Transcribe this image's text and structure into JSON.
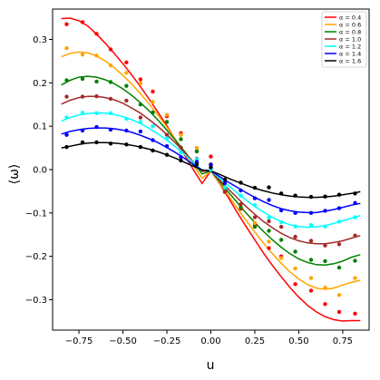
{
  "chart_data": {
    "type": "line",
    "xlabel": "u",
    "ylabel": "⟨ω⟩",
    "xlim": [
      -0.9,
      0.9
    ],
    "ylim": [
      -0.37,
      0.37
    ],
    "xticks": [
      -0.75,
      -0.5,
      -0.25,
      0.0,
      0.25,
      0.5,
      0.75
    ],
    "xtick_labels": [
      "−0.75",
      "−0.50",
      "−0.25",
      "0.00",
      "0.25",
      "0.50",
      "0.75"
    ],
    "yticks": [
      0.3,
      0.2,
      0.1,
      0.0,
      -0.1,
      -0.2,
      -0.3
    ],
    "ytick_labels": [
      "0.3",
      "0.2",
      "0.1",
      "0.0",
      "−0.1",
      "−0.2",
      "−0.3"
    ],
    "grid": false,
    "legend_position": "top-right",
    "series": [
      {
        "name": "α = 0.4",
        "color": "#ff0000",
        "curve_x": [
          -0.85,
          -0.8,
          -0.75,
          -0.7,
          -0.65,
          -0.6,
          -0.55,
          -0.5,
          -0.45,
          -0.4,
          -0.35,
          -0.3,
          -0.25,
          -0.2,
          -0.15,
          -0.1,
          -0.05,
          0.0,
          0.05,
          0.1,
          0.15,
          0.2,
          0.25,
          0.3,
          0.35,
          0.4,
          0.45,
          0.5,
          0.55,
          0.6,
          0.65,
          0.7,
          0.75,
          0.8,
          0.85
        ],
        "curve_y": [
          0.348,
          0.349,
          0.343,
          0.331,
          0.312,
          0.291,
          0.268,
          0.244,
          0.218,
          0.191,
          0.162,
          0.132,
          0.101,
          0.068,
          0.034,
          0.0,
          -0.032,
          -0.003,
          -0.032,
          -0.065,
          -0.099,
          -0.131,
          -0.162,
          -0.193,
          -0.221,
          -0.247,
          -0.272,
          -0.294,
          -0.313,
          -0.328,
          -0.339,
          -0.346,
          -0.349,
          -0.348,
          -0.348
        ],
        "points_x": [
          -0.82,
          -0.73,
          -0.65,
          -0.57,
          -0.48,
          -0.4,
          -0.33,
          -0.25,
          -0.17,
          -0.08,
          0.0,
          0.08,
          0.17,
          0.25,
          0.33,
          0.4,
          0.48,
          0.57,
          0.65,
          0.73,
          0.82
        ],
        "points_y": [
          0.335,
          0.34,
          0.313,
          0.277,
          0.247,
          0.208,
          0.18,
          0.123,
          0.084,
          0.042,
          0.03,
          -0.052,
          -0.09,
          -0.128,
          -0.181,
          -0.2,
          -0.264,
          -0.279,
          -0.31,
          -0.328,
          -0.332
        ]
      },
      {
        "name": "α = 0.6",
        "color": "#ffa500",
        "curve_x": [
          -0.85,
          -0.8,
          -0.75,
          -0.7,
          -0.65,
          -0.6,
          -0.55,
          -0.5,
          -0.45,
          -0.4,
          -0.35,
          -0.3,
          -0.25,
          -0.2,
          -0.15,
          -0.1,
          -0.05,
          0.0,
          0.05,
          0.1,
          0.15,
          0.2,
          0.25,
          0.3,
          0.35,
          0.4,
          0.45,
          0.5,
          0.55,
          0.6,
          0.65,
          0.7,
          0.75,
          0.8,
          0.85
        ],
        "curve_y": [
          0.26,
          0.268,
          0.271,
          0.269,
          0.262,
          0.25,
          0.235,
          0.217,
          0.197,
          0.175,
          0.151,
          0.125,
          0.098,
          0.069,
          0.039,
          0.01,
          -0.02,
          -0.003,
          -0.03,
          -0.06,
          -0.089,
          -0.117,
          -0.144,
          -0.17,
          -0.194,
          -0.216,
          -0.236,
          -0.252,
          -0.265,
          -0.273,
          -0.276,
          -0.273,
          -0.266,
          -0.26,
          -0.255
        ],
        "points_x": [
          -0.82,
          -0.73,
          -0.65,
          -0.57,
          -0.48,
          -0.4,
          -0.33,
          -0.25,
          -0.17,
          -0.08,
          0.0,
          0.08,
          0.17,
          0.25,
          0.33,
          0.4,
          0.48,
          0.57,
          0.65,
          0.73,
          0.82
        ],
        "points_y": [
          0.28,
          0.265,
          0.263,
          0.24,
          0.223,
          0.199,
          0.156,
          0.126,
          0.08,
          0.05,
          0.012,
          -0.052,
          -0.08,
          -0.123,
          -0.166,
          -0.204,
          -0.228,
          -0.25,
          -0.272,
          -0.289,
          -0.25
        ]
      },
      {
        "name": "α = 0.8",
        "color": "#008000",
        "curve_x": [
          -0.85,
          -0.8,
          -0.75,
          -0.7,
          -0.65,
          -0.6,
          -0.55,
          -0.5,
          -0.45,
          -0.4,
          -0.35,
          -0.3,
          -0.25,
          -0.2,
          -0.15,
          -0.1,
          -0.05,
          0.0,
          0.05,
          0.1,
          0.15,
          0.2,
          0.25,
          0.3,
          0.35,
          0.4,
          0.45,
          0.5,
          0.55,
          0.6,
          0.65,
          0.7,
          0.75,
          0.8,
          0.85
        ],
        "curve_y": [
          0.195,
          0.206,
          0.213,
          0.215,
          0.213,
          0.207,
          0.198,
          0.186,
          0.171,
          0.154,
          0.135,
          0.114,
          0.091,
          0.067,
          0.042,
          0.016,
          -0.01,
          -0.003,
          -0.027,
          -0.052,
          -0.076,
          -0.1,
          -0.122,
          -0.143,
          -0.162,
          -0.179,
          -0.194,
          -0.206,
          -0.214,
          -0.219,
          -0.22,
          -0.217,
          -0.211,
          -0.202,
          -0.196
        ],
        "points_x": [
          -0.82,
          -0.73,
          -0.65,
          -0.57,
          -0.48,
          -0.4,
          -0.33,
          -0.25,
          -0.17,
          -0.08,
          0.0,
          0.08,
          0.17,
          0.25,
          0.33,
          0.4,
          0.48,
          0.57,
          0.65,
          0.73,
          0.82
        ],
        "points_y": [
          0.206,
          0.209,
          0.203,
          0.202,
          0.193,
          0.15,
          0.132,
          0.11,
          0.07,
          0.042,
          0.012,
          -0.042,
          -0.087,
          -0.132,
          -0.141,
          -0.162,
          -0.189,
          -0.208,
          -0.211,
          -0.226,
          -0.21
        ]
      },
      {
        "name": "α = 1.0",
        "color": "#a52a2a",
        "curve_x": [
          -0.85,
          -0.8,
          -0.75,
          -0.7,
          -0.65,
          -0.6,
          -0.55,
          -0.5,
          -0.45,
          -0.4,
          -0.35,
          -0.3,
          -0.25,
          -0.2,
          -0.15,
          -0.1,
          -0.05,
          0.0,
          0.05,
          0.1,
          0.15,
          0.2,
          0.25,
          0.3,
          0.35,
          0.4,
          0.45,
          0.5,
          0.55,
          0.6,
          0.65,
          0.7,
          0.75,
          0.8,
          0.85
        ],
        "curve_y": [
          0.151,
          0.16,
          0.166,
          0.169,
          0.169,
          0.166,
          0.161,
          0.153,
          0.142,
          0.13,
          0.115,
          0.099,
          0.081,
          0.061,
          0.04,
          0.018,
          -0.004,
          -0.003,
          -0.024,
          -0.045,
          -0.065,
          -0.085,
          -0.103,
          -0.12,
          -0.134,
          -0.147,
          -0.157,
          -0.164,
          -0.169,
          -0.171,
          -0.171,
          -0.168,
          -0.164,
          -0.158,
          -0.152
        ],
        "points_x": [
          -0.82,
          -0.73,
          -0.65,
          -0.57,
          -0.48,
          -0.4,
          -0.33,
          -0.25,
          -0.17,
          -0.08,
          0.0,
          0.08,
          0.17,
          0.25,
          0.33,
          0.4,
          0.48,
          0.57,
          0.65,
          0.73,
          0.82
        ],
        "points_y": [
          0.168,
          0.168,
          0.169,
          0.163,
          0.159,
          0.12,
          0.1,
          0.08,
          0.051,
          0.025,
          0.012,
          -0.051,
          -0.08,
          -0.11,
          -0.119,
          -0.132,
          -0.155,
          -0.164,
          -0.175,
          -0.172,
          -0.152
        ]
      },
      {
        "name": "α = 1.2",
        "color": "#00ffff",
        "curve_x": [
          -0.85,
          -0.8,
          -0.75,
          -0.7,
          -0.65,
          -0.6,
          -0.55,
          -0.5,
          -0.45,
          -0.4,
          -0.35,
          -0.3,
          -0.25,
          -0.2,
          -0.15,
          -0.1,
          -0.05,
          0.0,
          0.05,
          0.1,
          0.15,
          0.2,
          0.25,
          0.3,
          0.35,
          0.4,
          0.45,
          0.5,
          0.55,
          0.6,
          0.65,
          0.7,
          0.75,
          0.8,
          0.85
        ],
        "curve_y": [
          0.112,
          0.12,
          0.126,
          0.129,
          0.131,
          0.13,
          0.127,
          0.122,
          0.115,
          0.106,
          0.095,
          0.082,
          0.068,
          0.052,
          0.035,
          0.017,
          -0.001,
          -0.003,
          -0.02,
          -0.037,
          -0.054,
          -0.07,
          -0.085,
          -0.098,
          -0.11,
          -0.12,
          -0.127,
          -0.131,
          -0.133,
          -0.132,
          -0.129,
          -0.124,
          -0.118,
          -0.112,
          -0.106
        ],
        "points_x": [
          -0.82,
          -0.73,
          -0.65,
          -0.57,
          -0.48,
          -0.4,
          -0.33,
          -0.25,
          -0.17,
          -0.08,
          0.0,
          0.08,
          0.17,
          0.25,
          0.33,
          0.4,
          0.48,
          0.57,
          0.65,
          0.73,
          0.82
        ],
        "points_y": [
          0.12,
          0.131,
          0.13,
          0.13,
          0.117,
          0.11,
          0.1,
          0.072,
          0.04,
          0.024,
          0.0,
          -0.041,
          -0.06,
          -0.082,
          -0.111,
          -0.121,
          -0.131,
          -0.128,
          -0.131,
          -0.12,
          -0.11
        ]
      },
      {
        "name": "α = 1.4",
        "color": "#0000ff",
        "curve_x": [
          -0.85,
          -0.8,
          -0.75,
          -0.7,
          -0.65,
          -0.6,
          -0.55,
          -0.5,
          -0.45,
          -0.4,
          -0.35,
          -0.3,
          -0.25,
          -0.2,
          -0.15,
          -0.1,
          -0.05,
          0.0,
          0.05,
          0.1,
          0.15,
          0.2,
          0.25,
          0.3,
          0.35,
          0.4,
          0.45,
          0.5,
          0.55,
          0.6,
          0.65,
          0.7,
          0.75,
          0.8,
          0.85
        ],
        "curve_y": [
          0.082,
          0.088,
          0.092,
          0.095,
          0.096,
          0.096,
          0.094,
          0.091,
          0.086,
          0.079,
          0.071,
          0.062,
          0.051,
          0.039,
          0.026,
          0.012,
          -0.001,
          -0.003,
          -0.016,
          -0.029,
          -0.041,
          -0.053,
          -0.064,
          -0.074,
          -0.083,
          -0.09,
          -0.095,
          -0.098,
          -0.099,
          -0.099,
          -0.096,
          -0.092,
          -0.087,
          -0.082,
          -0.078
        ],
        "points_x": [
          -0.82,
          -0.73,
          -0.65,
          -0.57,
          -0.48,
          -0.4,
          -0.33,
          -0.25,
          -0.17,
          -0.08,
          0.0,
          0.08,
          0.17,
          0.25,
          0.33,
          0.4,
          0.48,
          0.57,
          0.65,
          0.73,
          0.82
        ],
        "points_y": [
          0.08,
          0.09,
          0.098,
          0.092,
          0.09,
          0.088,
          0.068,
          0.054,
          0.029,
          0.018,
          0.011,
          -0.031,
          -0.048,
          -0.066,
          -0.07,
          -0.094,
          -0.1,
          -0.1,
          -0.095,
          -0.089,
          -0.077
        ]
      },
      {
        "name": "α = 1.6",
        "color": "#000000",
        "curve_x": [
          -0.85,
          -0.8,
          -0.75,
          -0.7,
          -0.65,
          -0.6,
          -0.55,
          -0.5,
          -0.45,
          -0.4,
          -0.35,
          -0.3,
          -0.25,
          -0.2,
          -0.15,
          -0.1,
          -0.05,
          0.0,
          0.05,
          0.1,
          0.15,
          0.2,
          0.25,
          0.3,
          0.35,
          0.4,
          0.45,
          0.5,
          0.55,
          0.6,
          0.65,
          0.7,
          0.75,
          0.8,
          0.85
        ],
        "curve_y": [
          0.05,
          0.054,
          0.058,
          0.061,
          0.062,
          0.062,
          0.061,
          0.059,
          0.056,
          0.052,
          0.047,
          0.041,
          0.034,
          0.026,
          0.017,
          0.008,
          -0.001,
          -0.003,
          -0.011,
          -0.02,
          -0.028,
          -0.036,
          -0.043,
          -0.049,
          -0.054,
          -0.058,
          -0.061,
          -0.063,
          -0.064,
          -0.064,
          -0.063,
          -0.061,
          -0.058,
          -0.055,
          -0.051
        ],
        "points_x": [
          -0.82,
          -0.73,
          -0.65,
          -0.57,
          -0.48,
          -0.4,
          -0.33,
          -0.25,
          -0.17,
          -0.08,
          0.0,
          0.08,
          0.17,
          0.25,
          0.33,
          0.4,
          0.48,
          0.57,
          0.65,
          0.73,
          0.82
        ],
        "points_y": [
          0.052,
          0.063,
          0.063,
          0.06,
          0.058,
          0.052,
          0.044,
          0.034,
          0.021,
          0.012,
          0.005,
          -0.023,
          -0.03,
          -0.042,
          -0.041,
          -0.055,
          -0.06,
          -0.063,
          -0.062,
          -0.058,
          -0.055
        ]
      }
    ]
  }
}
